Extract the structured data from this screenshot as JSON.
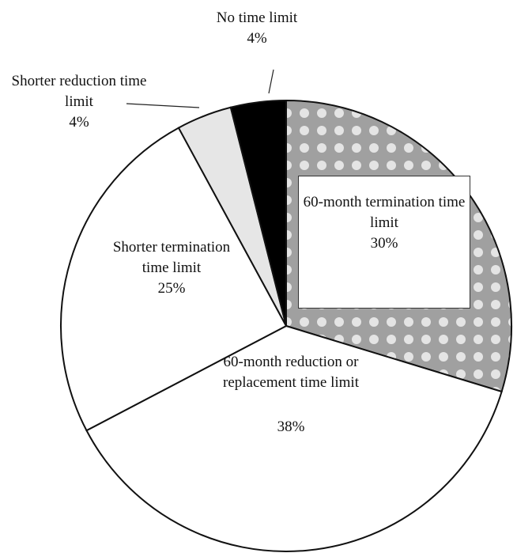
{
  "chart_data": {
    "type": "pie",
    "categories": [
      "60-month termination time limit",
      "60-month reduction or replacement time limit",
      "Shorter termination time limit",
      "Shorter reduction time limit",
      "No time limit"
    ],
    "values": [
      30,
      38,
      25,
      4,
      4
    ],
    "value_labels": [
      "30%",
      "38%",
      "25%",
      "4%",
      "4%"
    ],
    "colors": [
      "#a0a0a0",
      "#ffffff",
      "#ffffff",
      "#e6e6e6",
      "#000000"
    ]
  }
}
